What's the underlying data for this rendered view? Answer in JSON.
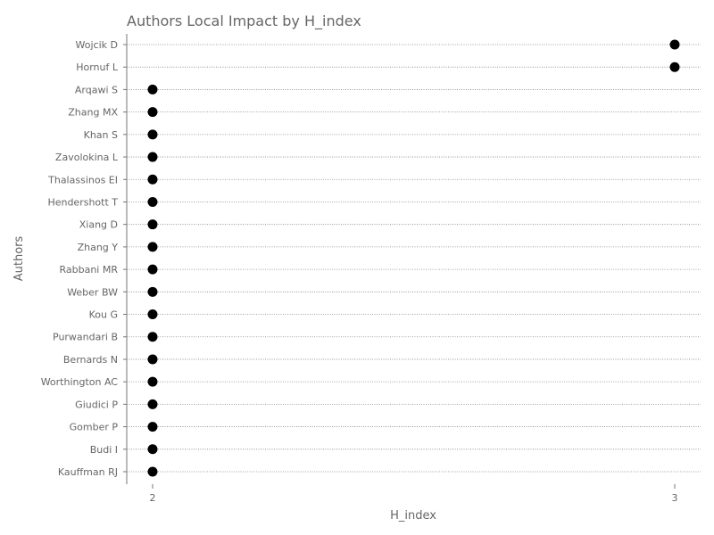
{
  "chart_data": {
    "type": "scatter",
    "title": "Authors Local Impact by H_index",
    "xlabel": "H_index",
    "ylabel": "Authors",
    "xlim": [
      1.95,
      3.05
    ],
    "xticks": [
      2,
      3
    ],
    "grid": "horizontal dotted",
    "categories": [
      "Wojcik D",
      "Hornuf L",
      "Arqawi S",
      "Zhang MX",
      "Khan S",
      "Zavolokina L",
      "Thalassinos EI",
      "Hendershott T",
      "Xiang D",
      "Zhang Y",
      "Rabbani MR",
      "Weber BW",
      "Kou G",
      "Purwandari B",
      "Bernards N",
      "Worthington AC",
      "Giudici P",
      "Gomber P",
      "Budi I",
      "Kauffman RJ"
    ],
    "values": [
      3,
      3,
      2,
      2,
      2,
      2,
      2,
      2,
      2,
      2,
      2,
      2,
      2,
      2,
      2,
      2,
      2,
      2,
      2,
      2
    ],
    "colors": {
      "point": "#000000",
      "text": "#666666",
      "grid": "#888888"
    }
  }
}
